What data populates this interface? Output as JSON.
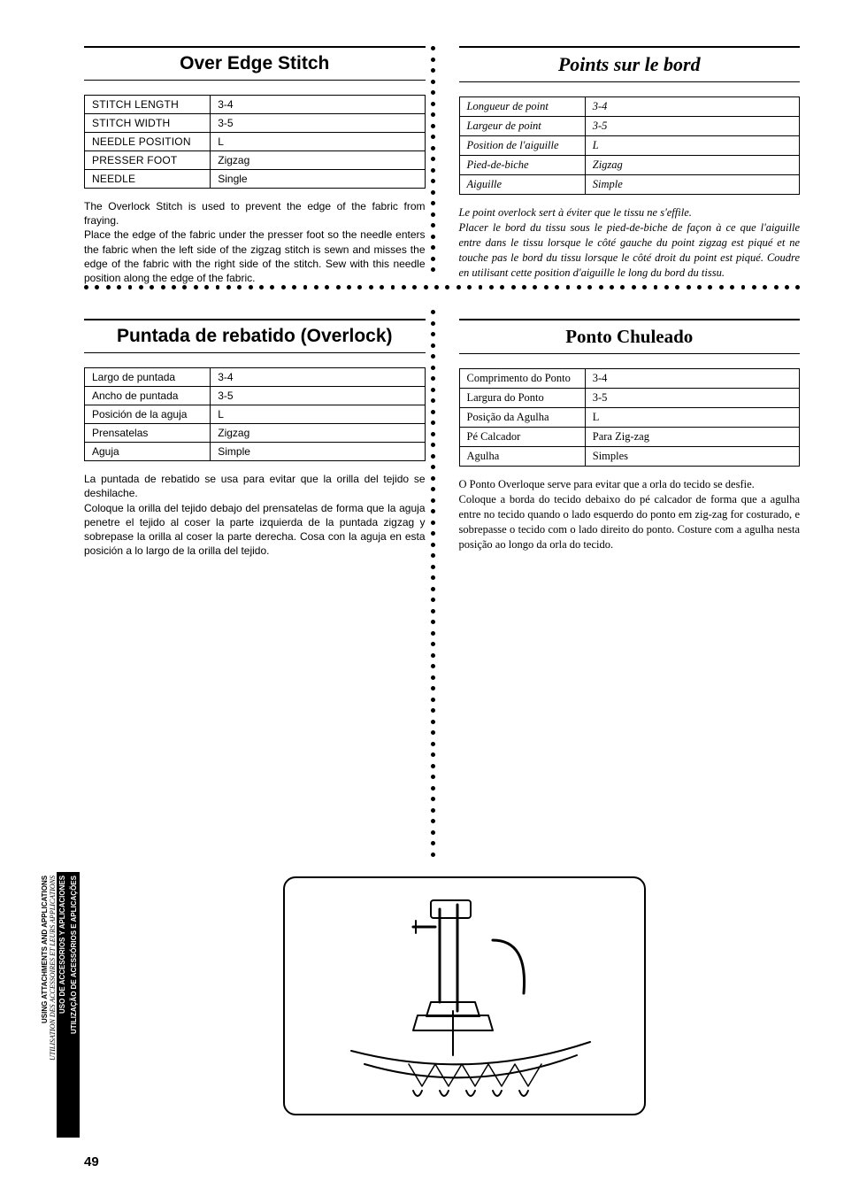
{
  "en": {
    "title": "Over Edge Stitch",
    "rows": [
      [
        "STITCH LENGTH",
        "3-4"
      ],
      [
        "STITCH WIDTH",
        "3-5"
      ],
      [
        "NEEDLE POSITION",
        "L"
      ],
      [
        "PRESSER FOOT",
        "Zigzag"
      ],
      [
        "NEEDLE",
        "Single"
      ]
    ],
    "text": "The Overlock Stitch is used to prevent the edge of the fabric from fraying.\nPlace the edge of the fabric under the presser foot so the needle enters the fabric when the left side of the zigzag stitch is sewn and misses the edge of the fabric with the right side of the stitch. Sew with this needle position along the edge of the fabric."
  },
  "fr": {
    "title": "Points sur le bord",
    "rows": [
      [
        "Longueur de point",
        "3-4"
      ],
      [
        "Largeur de point",
        "3-5"
      ],
      [
        "Position de l'aiguille",
        "L"
      ],
      [
        "Pied-de-biche",
        "Zigzag"
      ],
      [
        "Aiguille",
        "Simple"
      ]
    ],
    "text": "Le point overlock sert à éviter que le tissu ne s'effile.\nPlacer le bord du tissu sous le pied-de-biche de façon à ce que l'aiguille entre dans le tissu lorsque le côté gauche du point zigzag est piqué et ne touche pas le bord du tissu lorsque le côté droit du point est piqué. Coudre en utilisant cette position d'aiguille le long du bord du tissu."
  },
  "es": {
    "title": "Puntada de rebatido (Overlock)",
    "rows": [
      [
        "Largo de puntada",
        "3-4"
      ],
      [
        "Ancho de puntada",
        "3-5"
      ],
      [
        "Posición de la aguja",
        "L"
      ],
      [
        "Prensatelas",
        "Zigzag"
      ],
      [
        "Aguja",
        "Simple"
      ]
    ],
    "text": "La puntada de rebatido se usa para evitar que la orilla del tejido se deshilache.\nColoque la orilla del tejido debajo del prensatelas de forma que la aguja penetre el tejido al coser la parte izquierda de la puntada zigzag y sobrepase la orilla al coser la parte derecha. Cosa con la aguja en esta posición a lo largo de la orilla del tejido."
  },
  "pt": {
    "title": "Ponto Chuleado",
    "rows": [
      [
        "Comprimento do Ponto",
        "3-4"
      ],
      [
        "Largura do Ponto",
        "3-5"
      ],
      [
        "Posição da Agulha",
        "L"
      ],
      [
        "Pé Calcador",
        "Para Zig-zag"
      ],
      [
        "Agulha",
        "Simples"
      ]
    ],
    "text": "O Ponto Overloque serve para evitar que a orla do tecido se desfie.\nColoque a borda do tecido debaixo do pé calcador de forma que a agulha entre no tecido quando o lado esquerdo do ponto em zig-zag for costurado, e sobrepasse o tecido com o lado direito do ponto. Costure com a agulha nesta posição ao longo da orla do tecido."
  },
  "tab": {
    "en": "USING ATTACHMENTS AND APPLICATIONS",
    "fr": "UTILISATION DES ACCESSOIRES ET LEURS APPLICATIONS",
    "es": "USO DE ACCESORIOS Y APLICACIONES",
    "pt": "UTILIZAÇÃO DE ACESSÓRIOS E APLICAÇÕES"
  },
  "page_number": "49",
  "colors": {
    "text": "#000000",
    "background": "#ffffff",
    "divider_dot": "#000000"
  },
  "fonts": {
    "sans": "Arial, Helvetica, sans-serif",
    "serif_italic": "Times New Roman, serif",
    "title_size_pt": 21,
    "body_size_pt": 12
  }
}
